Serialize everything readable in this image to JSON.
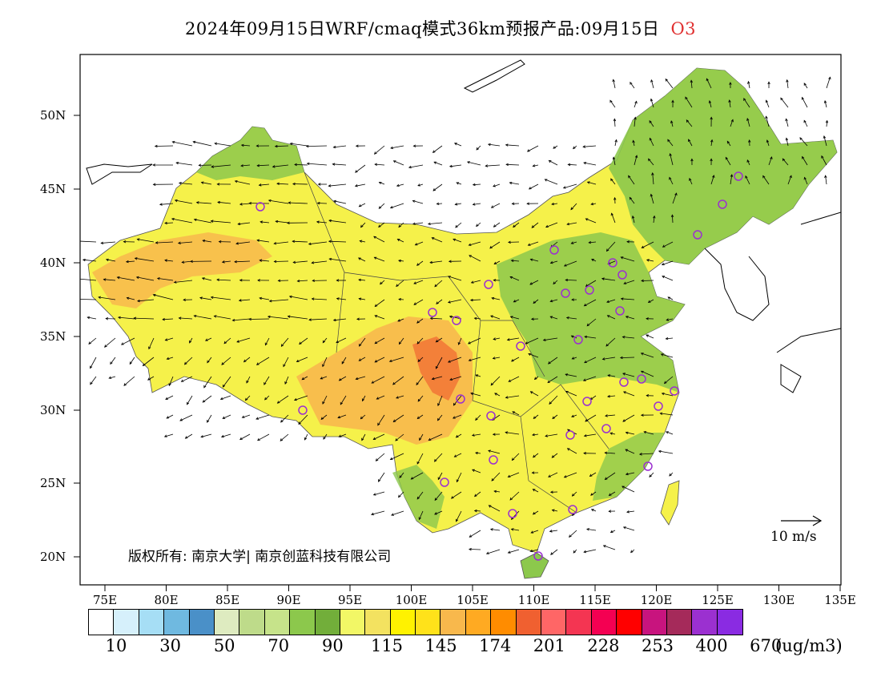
{
  "title": {
    "main": "2024年09月15日WRF/cmaq模式36km预报产品:09月15日",
    "species": "O3"
  },
  "axes": {
    "lat_labels": [
      "50N",
      "45N",
      "40N",
      "35N",
      "30N",
      "25N",
      "20N"
    ],
    "lon_labels": [
      "75E",
      "80E",
      "85E",
      "90E",
      "95E",
      "100E",
      "105E",
      "110E",
      "115E",
      "120E",
      "125E",
      "130E",
      "135E"
    ]
  },
  "copyright": "版权所有: 南京大学| 南京创蓝科技有限公司",
  "wind_reference": "10 m/s",
  "colorbar": {
    "colors": [
      "#ffffff",
      "#d6f0fb",
      "#a6def5",
      "#6fb9e0",
      "#4a90c8",
      "#deebc0",
      "#bedb8a",
      "#c6e38a",
      "#8cc84c",
      "#72ae3a",
      "#f2f766",
      "#f3e260",
      "#fff200",
      "#ffe21a",
      "#f8b84c",
      "#ffaa22",
      "#ff8c00",
      "#f06030",
      "#ff6666",
      "#f43552",
      "#f40052",
      "#ff0000",
      "#c8147e",
      "#a52a5a",
      "#9b30d0",
      "#8a2be2"
    ],
    "labels": [
      "10",
      "30",
      "50",
      "70",
      "90",
      "115",
      "145",
      "174",
      "201",
      "228",
      "253",
      "400",
      "670"
    ],
    "unit": "(ug/m3)"
  }
}
